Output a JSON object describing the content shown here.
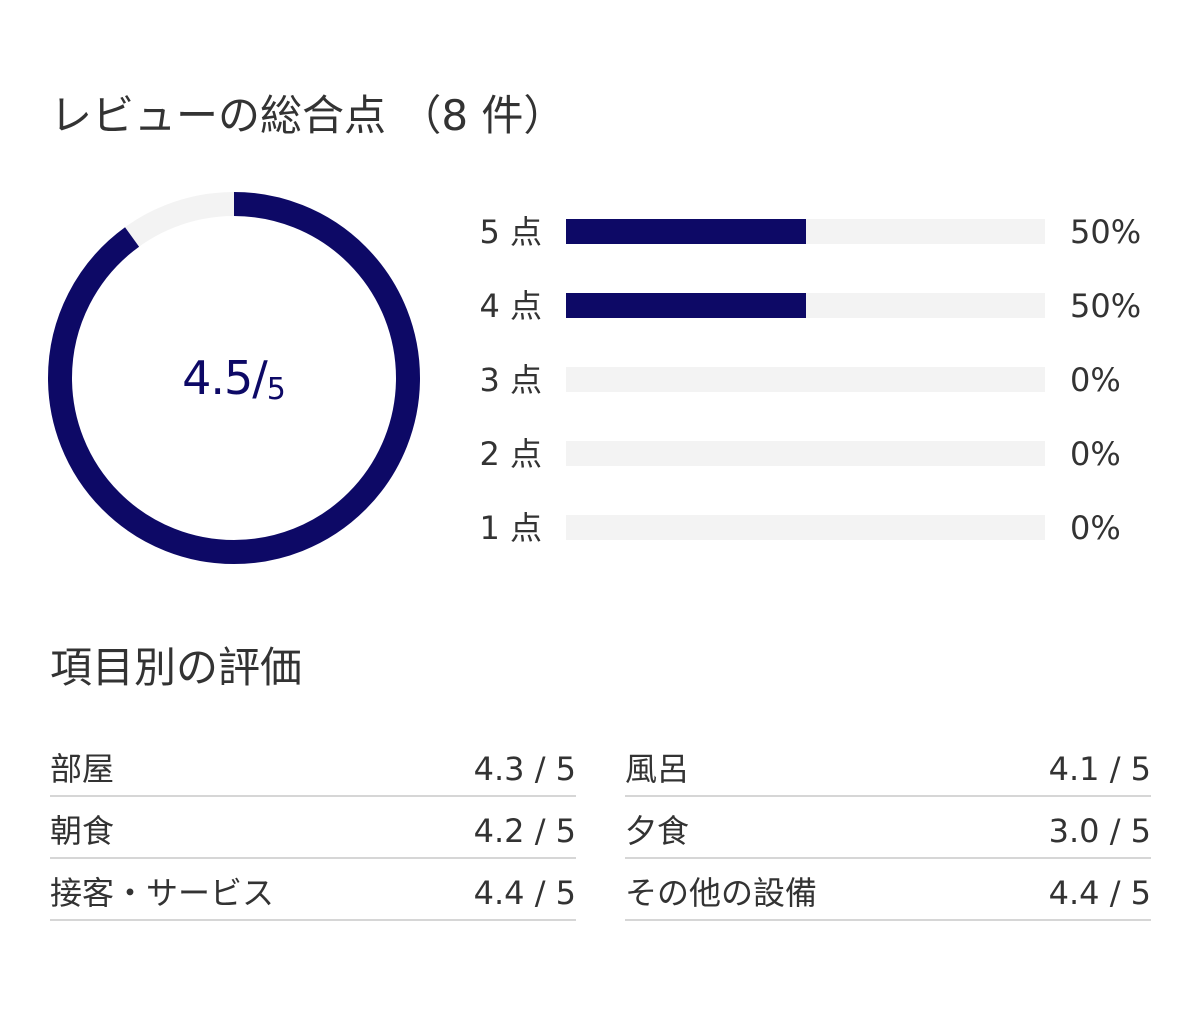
{
  "overall": {
    "title": "レビューの総合点 （8 件）",
    "score": "4.5/",
    "max": "5",
    "score_value": 4.5,
    "max_value": 5
  },
  "distribution": [
    {
      "label": "5 点",
      "percent": "50%",
      "value": 50
    },
    {
      "label": "4 点",
      "percent": "50%",
      "value": 50
    },
    {
      "label": "3 点",
      "percent": "0%",
      "value": 0
    },
    {
      "label": "2 点",
      "percent": "0%",
      "value": 0
    },
    {
      "label": "1 点",
      "percent": "0%",
      "value": 0
    }
  ],
  "categories": {
    "title": "項目別の評価",
    "left": [
      {
        "name": "部屋",
        "score": "4.3 / 5"
      },
      {
        "name": "朝食",
        "score": "4.2 / 5"
      },
      {
        "name": "接客・サービス",
        "score": "4.4 / 5"
      }
    ],
    "right": [
      {
        "name": "風呂",
        "score": "4.1 / 5"
      },
      {
        "name": "夕食",
        "score": "3.0 / 5"
      },
      {
        "name": "その他の設備",
        "score": "4.4 / 5"
      }
    ]
  },
  "colors": {
    "accent": "#0d0966",
    "track": "#f3f3f3",
    "text": "#333333",
    "divider": "#d6d6d6"
  }
}
